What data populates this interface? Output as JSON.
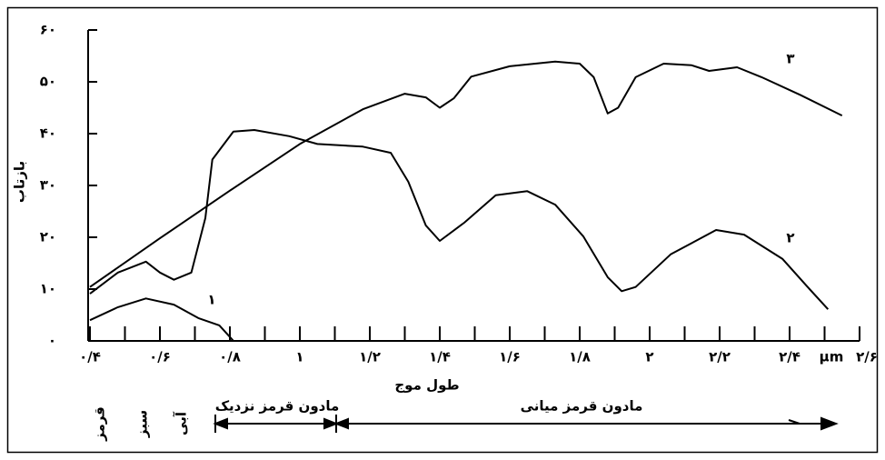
{
  "chart_data": {
    "type": "line",
    "y_label": "بازتاب",
    "x_label": "طول موج",
    "x_unit": "µm",
    "xlim": [
      0.4,
      2.6
    ],
    "ylim": [
      0,
      60
    ],
    "xticks": [
      {
        "value": 0.4,
        "label": "٠/۴"
      },
      {
        "value": 0.6,
        "label": "٠/۶"
      },
      {
        "value": 0.8,
        "label": "٠/٨"
      },
      {
        "value": 1,
        "label": "١"
      },
      {
        "value": 1.2,
        "label": "١/٢"
      },
      {
        "value": 1.4,
        "label": "١/۴"
      },
      {
        "value": 1.6,
        "label": "١/۶"
      },
      {
        "value": 1.8,
        "label": "١/٨"
      },
      {
        "value": 2,
        "label": "٢"
      },
      {
        "value": 2.2,
        "label": "٢/٢"
      },
      {
        "value": 2.4,
        "label": "٢/۴"
      },
      {
        "value": 2.6,
        "label": "٢/۶"
      }
    ],
    "yticks": [
      {
        "value": 0,
        "label": "٠"
      },
      {
        "value": 10,
        "label": "١٠"
      },
      {
        "value": 20,
        "label": "٢٠"
      },
      {
        "value": 30,
        "label": "٣٠"
      },
      {
        "value": 40,
        "label": "۴٠"
      },
      {
        "value": 50,
        "label": "۵٠"
      },
      {
        "value": 60,
        "label": "۶٠"
      }
    ],
    "series": [
      {
        "name": "١",
        "color": "#000000",
        "x": [
          0.4,
          0.48,
          0.56,
          0.64,
          0.71,
          0.77,
          0.81
        ],
        "values": [
          4.0,
          6.5,
          8.2,
          7.0,
          4.4,
          3.0,
          0
        ]
      },
      {
        "name": "٢",
        "color": "#000000",
        "x": [
          0.4,
          0.48,
          0.56,
          0.6,
          0.64,
          0.69,
          0.73,
          0.75,
          0.81,
          0.87,
          0.97,
          1.05,
          1.18,
          1.26,
          1.31,
          1.36,
          1.4,
          1.47,
          1.56,
          1.65,
          1.73,
          1.81,
          1.88,
          1.92,
          1.96,
          2.06,
          2.19,
          2.27,
          2.38,
          2.45,
          2.51
        ],
        "values": [
          9.1,
          13.2,
          15.3,
          13.2,
          11.8,
          13.2,
          23.7,
          35,
          40.4,
          40.7,
          39.5,
          38,
          37.5,
          36.3,
          30.7,
          22.3,
          19.3,
          22.8,
          28.1,
          28.9,
          26.3,
          20.2,
          12.3,
          9.6,
          10.4,
          16.7,
          21.4,
          20.5,
          15.8,
          10.5,
          6.1
        ]
      },
      {
        "name": "٣",
        "color": "#000000",
        "x": [
          0.4,
          0.6,
          0.8,
          1.0,
          1.18,
          1.3,
          1.36,
          1.4,
          1.44,
          1.49,
          1.6,
          1.73,
          1.8,
          1.84,
          1.88,
          1.91,
          1.96,
          2.04,
          2.12,
          2.17,
          2.25,
          2.32,
          2.43,
          2.55
        ],
        "values": [
          10.4,
          19.8,
          29,
          38,
          44.7,
          47.7,
          47,
          45,
          46.8,
          51,
          53,
          53.9,
          53.5,
          50.9,
          43.9,
          45,
          50.9,
          53.5,
          53.2,
          52.1,
          52.8,
          50.9,
          47.5,
          43.5
        ]
      }
    ],
    "band_labels": [
      "قرمز",
      "سبز",
      "آبی",
      "مادون قرمز نزدیک",
      "مادون قرمز میانی"
    ]
  }
}
